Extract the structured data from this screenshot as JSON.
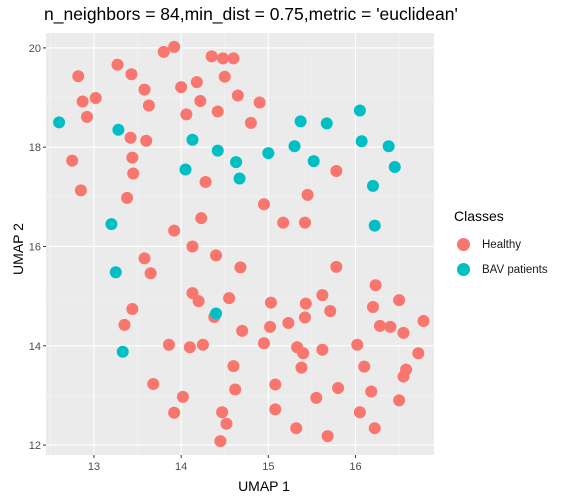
{
  "chart_data": {
    "type": "scatter",
    "title": "n_neighbors = 84,min_dist = 0.75,metric = 'euclidean'",
    "xlabel": "UMAP 1",
    "ylabel": "UMAP 2",
    "xlim": [
      12.45,
      16.9
    ],
    "ylim": [
      11.8,
      20.3
    ],
    "xticks": [
      13,
      14,
      15,
      16
    ],
    "yticks": [
      12,
      14,
      16,
      18,
      20
    ],
    "grid": true,
    "legend_position": "right",
    "legend_title": "Classes",
    "series": [
      {
        "name": "Healthy",
        "color": "#F8766D",
        "points": [
          [
            12.75,
            17.73
          ],
          [
            12.82,
            19.43
          ],
          [
            12.85,
            17.13
          ],
          [
            12.87,
            18.92
          ],
          [
            12.92,
            18.61
          ],
          [
            13.02,
            18.99
          ],
          [
            13.27,
            19.66
          ],
          [
            13.38,
            16.98
          ],
          [
            13.42,
            18.19
          ],
          [
            13.43,
            19.47
          ],
          [
            13.44,
            17.79
          ],
          [
            13.45,
            17.47
          ],
          [
            13.58,
            19.16
          ],
          [
            13.6,
            18.13
          ],
          [
            13.63,
            18.84
          ],
          [
            13.58,
            15.76
          ],
          [
            13.65,
            15.46
          ],
          [
            13.8,
            19.92
          ],
          [
            13.92,
            20.02
          ],
          [
            14.0,
            19.21
          ],
          [
            14.06,
            18.66
          ],
          [
            14.18,
            19.31
          ],
          [
            14.22,
            18.93
          ],
          [
            14.35,
            19.83
          ],
          [
            14.48,
            19.79
          ],
          [
            14.5,
            19.42
          ],
          [
            14.6,
            19.79
          ],
          [
            14.65,
            19.04
          ],
          [
            14.42,
            18.72
          ],
          [
            14.8,
            18.49
          ],
          [
            14.9,
            18.9
          ],
          [
            14.28,
            17.3
          ],
          [
            13.92,
            16.32
          ],
          [
            14.23,
            16.57
          ],
          [
            14.4,
            15.82
          ],
          [
            14.13,
            16.0
          ],
          [
            14.13,
            15.06
          ],
          [
            14.2,
            14.9
          ],
          [
            14.55,
            14.96
          ],
          [
            14.68,
            15.58
          ],
          [
            14.95,
            16.85
          ],
          [
            15.17,
            16.48
          ],
          [
            15.42,
            16.48
          ],
          [
            15.45,
            17.04
          ],
          [
            15.78,
            17.52
          ],
          [
            15.62,
            15.02
          ],
          [
            15.78,
            15.59
          ],
          [
            15.03,
            14.87
          ],
          [
            15.02,
            14.38
          ],
          [
            15.23,
            14.46
          ],
          [
            15.42,
            14.57
          ],
          [
            15.43,
            14.85
          ],
          [
            15.71,
            14.7
          ],
          [
            13.35,
            14.42
          ],
          [
            13.44,
            14.74
          ],
          [
            13.86,
            14.02
          ],
          [
            14.1,
            13.97
          ],
          [
            14.25,
            14.02
          ],
          [
            14.38,
            14.58
          ],
          [
            14.7,
            14.3
          ],
          [
            14.95,
            14.05
          ],
          [
            15.33,
            13.97
          ],
          [
            15.4,
            13.85
          ],
          [
            15.62,
            13.92
          ],
          [
            13.68,
            13.23
          ],
          [
            14.02,
            12.97
          ],
          [
            13.92,
            12.65
          ],
          [
            14.6,
            13.59
          ],
          [
            14.62,
            13.12
          ],
          [
            15.08,
            13.22
          ],
          [
            15.38,
            13.56
          ],
          [
            15.55,
            12.95
          ],
          [
            15.8,
            13.15
          ],
          [
            14.47,
            12.66
          ],
          [
            14.52,
            12.43
          ],
          [
            14.45,
            12.08
          ],
          [
            15.08,
            12.72
          ],
          [
            15.32,
            12.34
          ],
          [
            15.68,
            12.18
          ],
          [
            16.02,
            14.02
          ],
          [
            16.1,
            13.58
          ],
          [
            16.2,
            14.78
          ],
          [
            16.23,
            15.22
          ],
          [
            16.28,
            14.4
          ],
          [
            16.18,
            13.08
          ],
          [
            16.05,
            12.66
          ],
          [
            16.22,
            12.34
          ],
          [
            16.4,
            14.38
          ],
          [
            16.5,
            14.92
          ],
          [
            16.55,
            14.26
          ],
          [
            16.58,
            13.52
          ],
          [
            16.55,
            13.38
          ],
          [
            16.5,
            12.9
          ],
          [
            16.72,
            13.85
          ],
          [
            16.78,
            14.5
          ]
        ]
      },
      {
        "name": "BAV patients",
        "color": "#00BFC4",
        "points": [
          [
            12.6,
            18.5
          ],
          [
            13.2,
            16.45
          ],
          [
            13.25,
            15.48
          ],
          [
            13.28,
            18.35
          ],
          [
            13.33,
            13.88
          ],
          [
            14.05,
            17.55
          ],
          [
            14.13,
            18.15
          ],
          [
            14.4,
            14.65
          ],
          [
            14.42,
            17.93
          ],
          [
            14.63,
            17.7
          ],
          [
            14.67,
            17.37
          ],
          [
            15.0,
            17.88
          ],
          [
            15.3,
            18.02
          ],
          [
            15.37,
            18.52
          ],
          [
            15.52,
            17.72
          ],
          [
            15.67,
            18.48
          ],
          [
            16.05,
            18.74
          ],
          [
            16.07,
            18.12
          ],
          [
            16.2,
            17.22
          ],
          [
            16.22,
            16.42
          ],
          [
            16.38,
            18.02
          ],
          [
            16.45,
            17.6
          ]
        ]
      }
    ]
  }
}
